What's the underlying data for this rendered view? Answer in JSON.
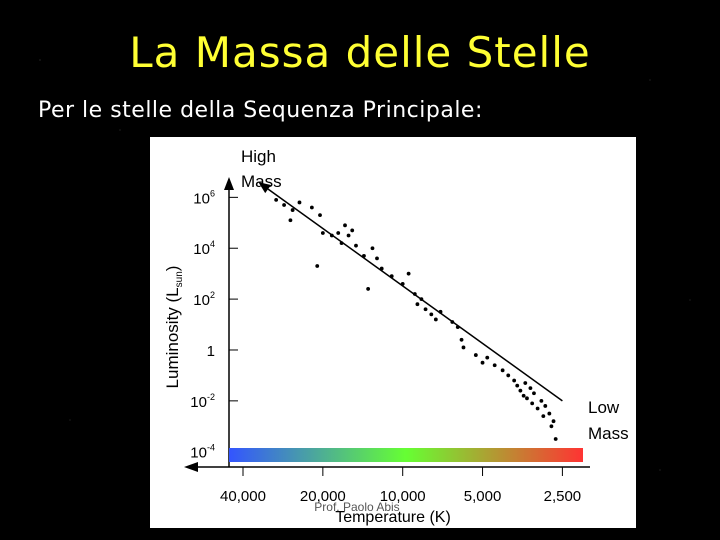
{
  "slide": {
    "title": "La Massa delle Stelle",
    "subtitle": "Per le stelle della Sequenza Principale:"
  },
  "chart_data": {
    "type": "scatter",
    "title": "",
    "xlabel": "Temperature (K)",
    "ylabel_main": "Luminosity (L",
    "ylabel_sub": "sun",
    "ylabel_close": ")",
    "x_scale": "log-reversed",
    "y_scale": "log",
    "xlim": [
      48000,
      2300
    ],
    "ylim_log10": [
      -4.6,
      6.8
    ],
    "x_ticks": [
      {
        "value": 40000,
        "label": "40,000"
      },
      {
        "value": 20000,
        "label": "20,000"
      },
      {
        "value": 10000,
        "label": "10,000"
      },
      {
        "value": 5000,
        "label": "5,000"
      },
      {
        "value": 2500,
        "label": "2,500"
      }
    ],
    "y_ticks": [
      {
        "log": 6,
        "base": "10",
        "exp": "6"
      },
      {
        "log": 4,
        "base": "10",
        "exp": "4"
      },
      {
        "log": 2,
        "base": "10",
        "exp": "2"
      },
      {
        "log": 0,
        "base": "1",
        "exp": ""
      },
      {
        "log": -2,
        "base": "10",
        "exp": "-2"
      },
      {
        "log": -4,
        "base": "10",
        "exp": "-4"
      }
    ],
    "annotations": {
      "high_mass": [
        "High",
        "Mass"
      ],
      "low_mass": [
        "Low",
        "Mass"
      ],
      "watermark": "Prof. Paolo Abis"
    },
    "trend_arrow": {
      "from": {
        "temperature": 2500,
        "log_luminosity": -2.0
      },
      "to": {
        "temperature": 35000,
        "log_luminosity": 6.6
      }
    },
    "color_bar": {
      "colors": [
        "#3355ff",
        "#33aaff",
        "#33ffcc",
        "#66ff33",
        "#ffff00",
        "#ffaa00",
        "#ff3333"
      ]
    },
    "points": [
      {
        "temperature": 30000,
        "log_luminosity": 5.9
      },
      {
        "temperature": 28000,
        "log_luminosity": 5.7
      },
      {
        "temperature": 26000,
        "log_luminosity": 5.5
      },
      {
        "temperature": 24500,
        "log_luminosity": 5.8
      },
      {
        "temperature": 26500,
        "log_luminosity": 5.1
      },
      {
        "temperature": 22000,
        "log_luminosity": 5.6
      },
      {
        "temperature": 20500,
        "log_luminosity": 5.3
      },
      {
        "temperature": 20000,
        "log_luminosity": 4.6
      },
      {
        "temperature": 18500,
        "log_luminosity": 4.5
      },
      {
        "temperature": 17500,
        "log_luminosity": 4.6
      },
      {
        "temperature": 17000,
        "log_luminosity": 4.2
      },
      {
        "temperature": 16500,
        "log_luminosity": 4.9
      },
      {
        "temperature": 16000,
        "log_luminosity": 4.5
      },
      {
        "temperature": 15500,
        "log_luminosity": 4.7
      },
      {
        "temperature": 21000,
        "log_luminosity": 3.3
      },
      {
        "temperature": 15000,
        "log_luminosity": 4.1
      },
      {
        "temperature": 14000,
        "log_luminosity": 3.7
      },
      {
        "temperature": 13000,
        "log_luminosity": 4.0
      },
      {
        "temperature": 12500,
        "log_luminosity": 3.6
      },
      {
        "temperature": 12000,
        "log_luminosity": 3.2
      },
      {
        "temperature": 13500,
        "log_luminosity": 2.4
      },
      {
        "temperature": 11000,
        "log_luminosity": 2.9
      },
      {
        "temperature": 10000,
        "log_luminosity": 2.6
      },
      {
        "temperature": 9500,
        "log_luminosity": 3.0
      },
      {
        "temperature": 9000,
        "log_luminosity": 2.2
      },
      {
        "temperature": 8800,
        "log_luminosity": 1.8
      },
      {
        "temperature": 8500,
        "log_luminosity": 2.0
      },
      {
        "temperature": 8200,
        "log_luminosity": 1.6
      },
      {
        "temperature": 7800,
        "log_luminosity": 1.4
      },
      {
        "temperature": 7500,
        "log_luminosity": 1.2
      },
      {
        "temperature": 7200,
        "log_luminosity": 1.5
      },
      {
        "temperature": 6500,
        "log_luminosity": 1.1
      },
      {
        "temperature": 6200,
        "log_luminosity": 0.9
      },
      {
        "temperature": 6000,
        "log_luminosity": 0.4
      },
      {
        "temperature": 5900,
        "log_luminosity": 0.1
      },
      {
        "temperature": 5300,
        "log_luminosity": -0.2
      },
      {
        "temperature": 5000,
        "log_luminosity": -0.5
      },
      {
        "temperature": 4800,
        "log_luminosity": -0.3
      },
      {
        "temperature": 4500,
        "log_luminosity": -0.6
      },
      {
        "temperature": 4200,
        "log_luminosity": -0.8
      },
      {
        "temperature": 4000,
        "log_luminosity": -1.0
      },
      {
        "temperature": 3800,
        "log_luminosity": -1.2
      },
      {
        "temperature": 3700,
        "log_luminosity": -1.4
      },
      {
        "temperature": 3600,
        "log_luminosity": -1.6
      },
      {
        "temperature": 3500,
        "log_luminosity": -1.8
      },
      {
        "temperature": 3450,
        "log_luminosity": -1.3
      },
      {
        "temperature": 3400,
        "log_luminosity": -1.9
      },
      {
        "temperature": 3300,
        "log_luminosity": -1.5
      },
      {
        "temperature": 3250,
        "log_luminosity": -2.1
      },
      {
        "temperature": 3200,
        "log_luminosity": -1.7
      },
      {
        "temperature": 3100,
        "log_luminosity": -2.3
      },
      {
        "temperature": 3000,
        "log_luminosity": -2.0
      },
      {
        "temperature": 2950,
        "log_luminosity": -2.6
      },
      {
        "temperature": 2900,
        "log_luminosity": -2.2
      },
      {
        "temperature": 2800,
        "log_luminosity": -2.5
      },
      {
        "temperature": 2750,
        "log_luminosity": -3.0
      },
      {
        "temperature": 2700,
        "log_luminosity": -2.8
      },
      {
        "temperature": 2650,
        "log_luminosity": -3.5
      }
    ]
  }
}
